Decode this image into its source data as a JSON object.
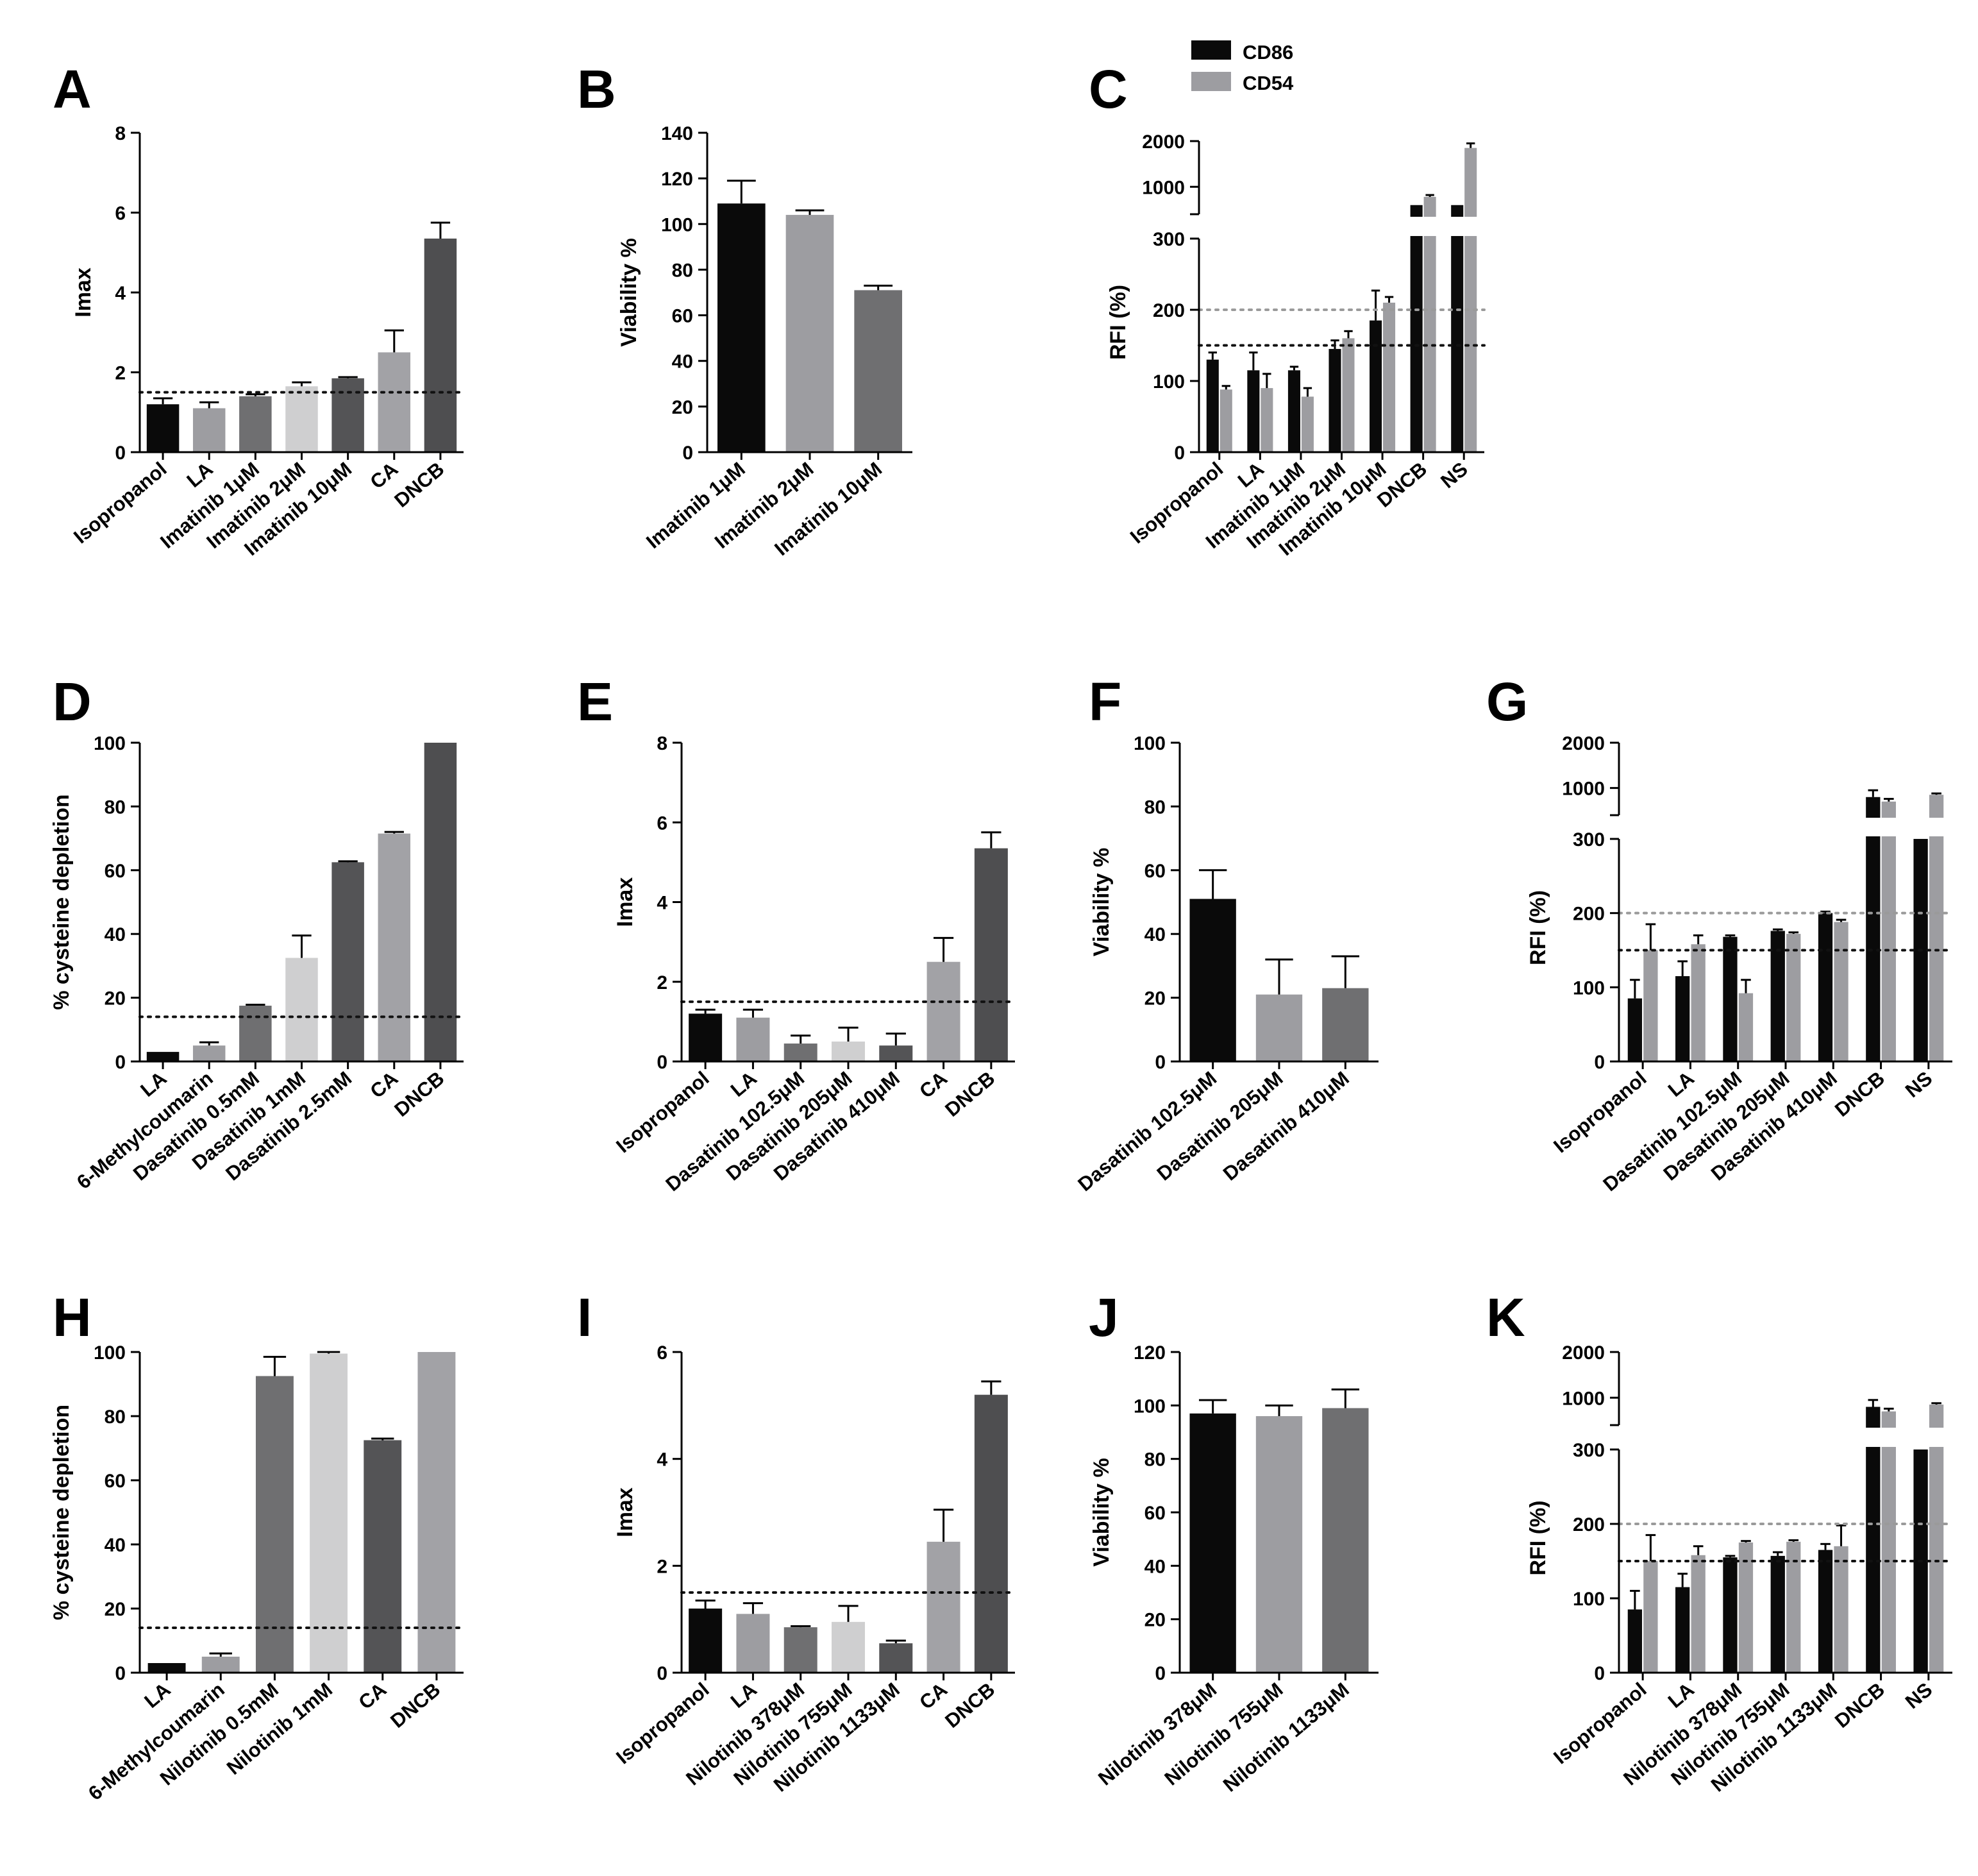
{
  "colors": {
    "black": "#0a0a0a",
    "c1": "#0a0a0a",
    "c2": "#9d9da1",
    "c3": "#6f6f71",
    "c4": "#cfcfd0",
    "c5": "#545456",
    "c6": "#a2a2a6",
    "c7": "#4e4e50",
    "cd86": "#0a0a0a",
    "cd54": "#9d9da1",
    "ref_dark": "#111111",
    "ref_light": "#9a9a9a"
  },
  "legend": {
    "cd86": "CD86",
    "cd54": "CD54"
  },
  "chart_data": [
    {
      "panel": "A",
      "type": "bar",
      "ylabel": "Imax",
      "ylim": [
        0,
        8
      ],
      "yticks": [
        0,
        2,
        4,
        6,
        8
      ],
      "categories": [
        "Isopropanol",
        "LA",
        "Imatinib 1μM",
        "Imatinib 2μM",
        "Imatinib 10μM",
        "CA",
        "DNCB"
      ],
      "values": [
        1.2,
        1.1,
        1.4,
        1.65,
        1.85,
        2.5,
        5.35
      ],
      "errors": [
        0.15,
        0.15,
        0.05,
        0.1,
        0.03,
        0.55,
        0.4
      ],
      "reference_lines": [
        {
          "y": 1.5,
          "style": "dark"
        }
      ]
    },
    {
      "panel": "B",
      "type": "bar",
      "ylabel": "Viability %",
      "ylim": [
        0,
        140
      ],
      "yticks": [
        0,
        20,
        40,
        60,
        80,
        100,
        120,
        140
      ],
      "categories": [
        "Imatinib 1μM",
        "Imatinib 2μM",
        "Imatinib 10μM"
      ],
      "values": [
        109,
        104,
        71
      ],
      "errors": [
        10,
        2,
        2
      ],
      "reference_lines": []
    },
    {
      "panel": "C",
      "type": "grouped-bar-broken-axis",
      "ylabel": "RFI (%)",
      "lower_ticks": [
        0,
        100,
        200,
        300
      ],
      "upper_ticks": [
        1000,
        2000
      ],
      "categories": [
        "Isopropanol",
        "LA",
        "Imatinib 1μM",
        "Imatinib 2μM",
        "Imatinib 10μM",
        "DNCB",
        "NS"
      ],
      "series": [
        {
          "name": "CD86",
          "values": [
            130,
            115,
            115,
            145,
            185,
            600,
            600
          ],
          "errors": [
            10,
            25,
            5,
            12,
            42,
            0,
            0
          ]
        },
        {
          "name": "CD54",
          "values": [
            88,
            90,
            78,
            160,
            210,
            780,
            1850
          ],
          "errors": [
            5,
            20,
            12,
            10,
            8,
            40,
            100
          ]
        }
      ],
      "reference_lines": [
        {
          "y": 200,
          "style": "light"
        },
        {
          "y": 150,
          "style": "dark"
        }
      ]
    },
    {
      "panel": "D",
      "type": "bar",
      "ylabel": "% cysteine depletion",
      "ylim": [
        0,
        100
      ],
      "yticks": [
        0,
        20,
        40,
        60,
        80,
        100
      ],
      "categories": [
        "LA",
        "6-Methylcoumarin",
        "Dasatinib 0.5mM",
        "Dasatinib 1mM",
        "Dasatinib 2.5mM",
        "CA",
        "DNCB"
      ],
      "values": [
        3,
        5,
        17.5,
        32.5,
        62.5,
        71.5,
        100
      ],
      "errors": [
        0,
        1,
        0.3,
        7,
        0.3,
        0.5,
        0
      ],
      "reference_lines": [
        {
          "y": 14,
          "style": "dark"
        }
      ]
    },
    {
      "panel": "E",
      "type": "bar",
      "ylabel": "Imax",
      "ylim": [
        0,
        8
      ],
      "yticks": [
        0,
        2,
        4,
        6,
        8
      ],
      "categories": [
        "Isopropanol",
        "LA",
        "Dasatinib 102.5μM",
        "Dasatinib 205μM",
        "Dasatinib 410μM",
        "CA",
        "DNCB"
      ],
      "values": [
        1.2,
        1.1,
        0.45,
        0.5,
        0.4,
        2.5,
        5.35
      ],
      "errors": [
        0.1,
        0.2,
        0.2,
        0.35,
        0.3,
        0.6,
        0.4
      ],
      "reference_lines": [
        {
          "y": 1.5,
          "style": "dark"
        }
      ]
    },
    {
      "panel": "F",
      "type": "bar",
      "ylabel": "Viability %",
      "ylim": [
        0,
        100
      ],
      "yticks": [
        0,
        20,
        40,
        60,
        80,
        100
      ],
      "categories": [
        "Dasatinib 102.5μM",
        "Dasatinib 205μM",
        "Dasatinib 410μM"
      ],
      "values": [
        51,
        21,
        23
      ],
      "errors": [
        9,
        11,
        10
      ],
      "reference_lines": []
    },
    {
      "panel": "G",
      "type": "grouped-bar-broken-axis",
      "ylabel": "RFI (%)",
      "lower_ticks": [
        0,
        100,
        200,
        300
      ],
      "upper_ticks": [
        1000,
        2000
      ],
      "categories": [
        "Isopropanol",
        "LA",
        "Dasatinib 102.5μM",
        "Dasatinib 205μM",
        "Dasatinib 410μM",
        "DNCB",
        "NS"
      ],
      "series": [
        {
          "name": "CD86",
          "values": [
            85,
            115,
            168,
            176,
            200,
            800,
            300
          ],
          "errors": [
            25,
            20,
            2,
            2,
            2,
            150,
            0
          ],
          "broken_top": [
            false,
            false,
            false,
            false,
            false,
            false,
            true
          ]
        },
        {
          "name": "CD54",
          "values": [
            150,
            158,
            92,
            172,
            188,
            700,
            850
          ],
          "errors": [
            35,
            12,
            18,
            2,
            3,
            60,
            30
          ]
        }
      ],
      "reference_lines": [
        {
          "y": 200,
          "style": "light"
        },
        {
          "y": 150,
          "style": "dark"
        }
      ]
    },
    {
      "panel": "H",
      "type": "bar",
      "ylabel": "% cysteine depletion",
      "ylim": [
        0,
        100
      ],
      "yticks": [
        0,
        20,
        40,
        60,
        80,
        100
      ],
      "categories": [
        "LA",
        "6-Methylcoumarin",
        "Nilotinib 0.5mM",
        "Nilotinib 1mM",
        "CA",
        "DNCB"
      ],
      "values": [
        3,
        5,
        92.5,
        99.5,
        72.5,
        100
      ],
      "errors": [
        0,
        1,
        6,
        0.5,
        0.5,
        0
      ],
      "reference_lines": [
        {
          "y": 14,
          "style": "dark"
        }
      ]
    },
    {
      "panel": "I",
      "type": "bar",
      "ylabel": "Imax",
      "ylim": [
        0,
        6
      ],
      "yticks": [
        0,
        2,
        4,
        6
      ],
      "categories": [
        "Isopropanol",
        "LA",
        "Nilotinib 378μM",
        "Nilotinib 755μM",
        "Nilotinib 1133μM",
        "CA",
        "DNCB"
      ],
      "values": [
        1.2,
        1.1,
        0.85,
        0.95,
        0.55,
        2.45,
        5.2
      ],
      "errors": [
        0.15,
        0.2,
        0.02,
        0.3,
        0.05,
        0.6,
        0.25
      ],
      "reference_lines": [
        {
          "y": 1.5,
          "style": "dark"
        }
      ]
    },
    {
      "panel": "J",
      "type": "bar",
      "ylabel": "Viability %",
      "ylim": [
        0,
        120
      ],
      "yticks": [
        0,
        20,
        40,
        60,
        80,
        100,
        120
      ],
      "categories": [
        "Nilotinib 378μM",
        "Nilotinib 755μM",
        "Nilotinib 1133μM"
      ],
      "values": [
        97,
        96,
        99
      ],
      "errors": [
        5,
        4,
        7
      ],
      "reference_lines": []
    },
    {
      "panel": "K",
      "type": "grouped-bar-broken-axis",
      "ylabel": "RFI (%)",
      "lower_ticks": [
        0,
        100,
        200,
        300
      ],
      "upper_ticks": [
        1000,
        2000
      ],
      "categories": [
        "Isopropanol",
        "LA",
        "Nilotinib 378μM",
        "Nilotinib 755μM",
        "Nilotinib 1133μM",
        "DNCB",
        "NS"
      ],
      "series": [
        {
          "name": "CD86",
          "values": [
            85,
            115,
            155,
            157,
            165,
            800,
            300
          ],
          "errors": [
            25,
            18,
            2,
            5,
            8,
            150,
            0
          ],
          "broken_top": [
            false,
            false,
            false,
            false,
            false,
            false,
            true
          ]
        },
        {
          "name": "CD54",
          "values": [
            150,
            158,
            175,
            176,
            170,
            700,
            850
          ],
          "errors": [
            35,
            12,
            2,
            2,
            28,
            60,
            30
          ]
        }
      ],
      "reference_lines": [
        {
          "y": 200,
          "style": "light"
        },
        {
          "y": 150,
          "style": "dark"
        }
      ]
    }
  ]
}
